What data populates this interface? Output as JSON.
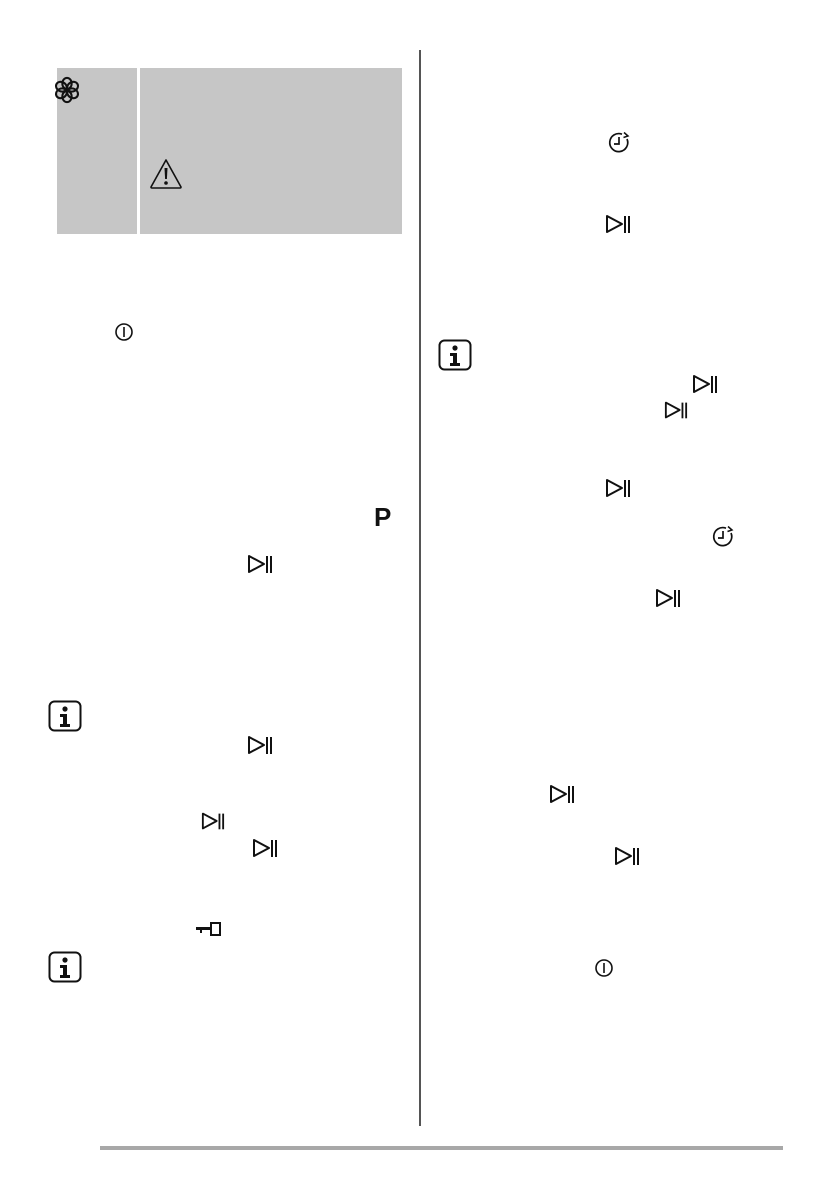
{
  "note_box": {
    "icons": [
      "flower-icon",
      "warning-icon"
    ],
    "background": "#c6c6c6"
  },
  "program_symbol": "P",
  "icons": {
    "power": "power-icon",
    "start_pause": "start-pause-icon",
    "info": "info-icon",
    "delay_timer": "delay-timer-icon",
    "child_lock": "key-icon"
  },
  "colors": {
    "ink": "#111111",
    "rule": "#a8a8a8"
  }
}
